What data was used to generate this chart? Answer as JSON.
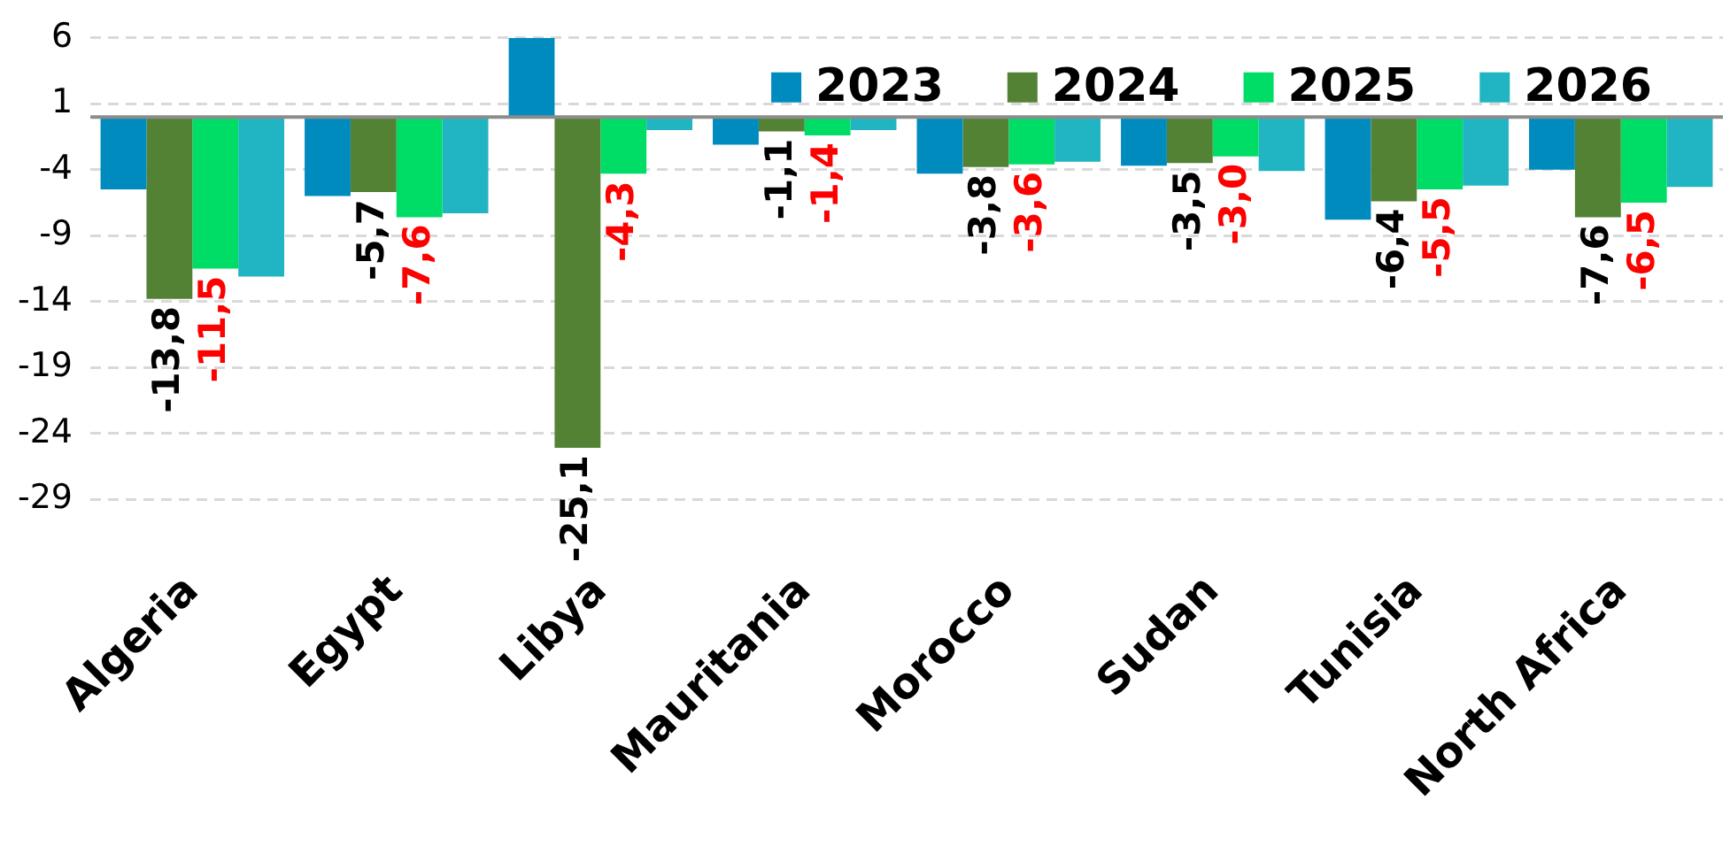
{
  "chart_data": {
    "type": "bar",
    "categories": [
      "Algeria",
      "Egypt",
      "Libya",
      "Mauritania",
      "Morocco",
      "Sudan",
      "Tunisia",
      "North Africa"
    ],
    "series": [
      {
        "name": "2023",
        "color": "#008bbf",
        "values": [
          -5.5,
          -6.0,
          6.0,
          -2.1,
          -4.3,
          -3.7,
          -7.8,
          -4.0
        ]
      },
      {
        "name": "2024",
        "color": "#548235",
        "values": [
          -13.8,
          -5.7,
          -25.1,
          -1.1,
          -3.8,
          -3.5,
          -6.4,
          -7.6
        ],
        "value_labels": [
          "-13,8",
          "-5,7",
          "-25,1",
          "-1,1",
          "-3,8",
          "-3,5",
          "-6,4",
          "-7,6"
        ]
      },
      {
        "name": "2025",
        "color": "#00dd66",
        "values": [
          -11.5,
          -7.6,
          -4.3,
          -1.4,
          -3.6,
          -3.0,
          -5.5,
          -6.5
        ],
        "value_labels": [
          "-11,5",
          "-7,6",
          "-4,3",
          "-1,4",
          "-3,6",
          "-3,0",
          "-5,5",
          "-6,5"
        ]
      },
      {
        "name": "2026",
        "color": "#21b4c3",
        "values": [
          -12.1,
          -7.3,
          -1.0,
          -1.0,
          -3.4,
          -4.1,
          -5.2,
          -5.3
        ]
      }
    ],
    "ylim": [
      -29,
      6
    ],
    "yticks": [
      6,
      1,
      -4,
      -9,
      -14,
      -19,
      -24,
      -29
    ],
    "grid": "y",
    "legend": "top right"
  }
}
